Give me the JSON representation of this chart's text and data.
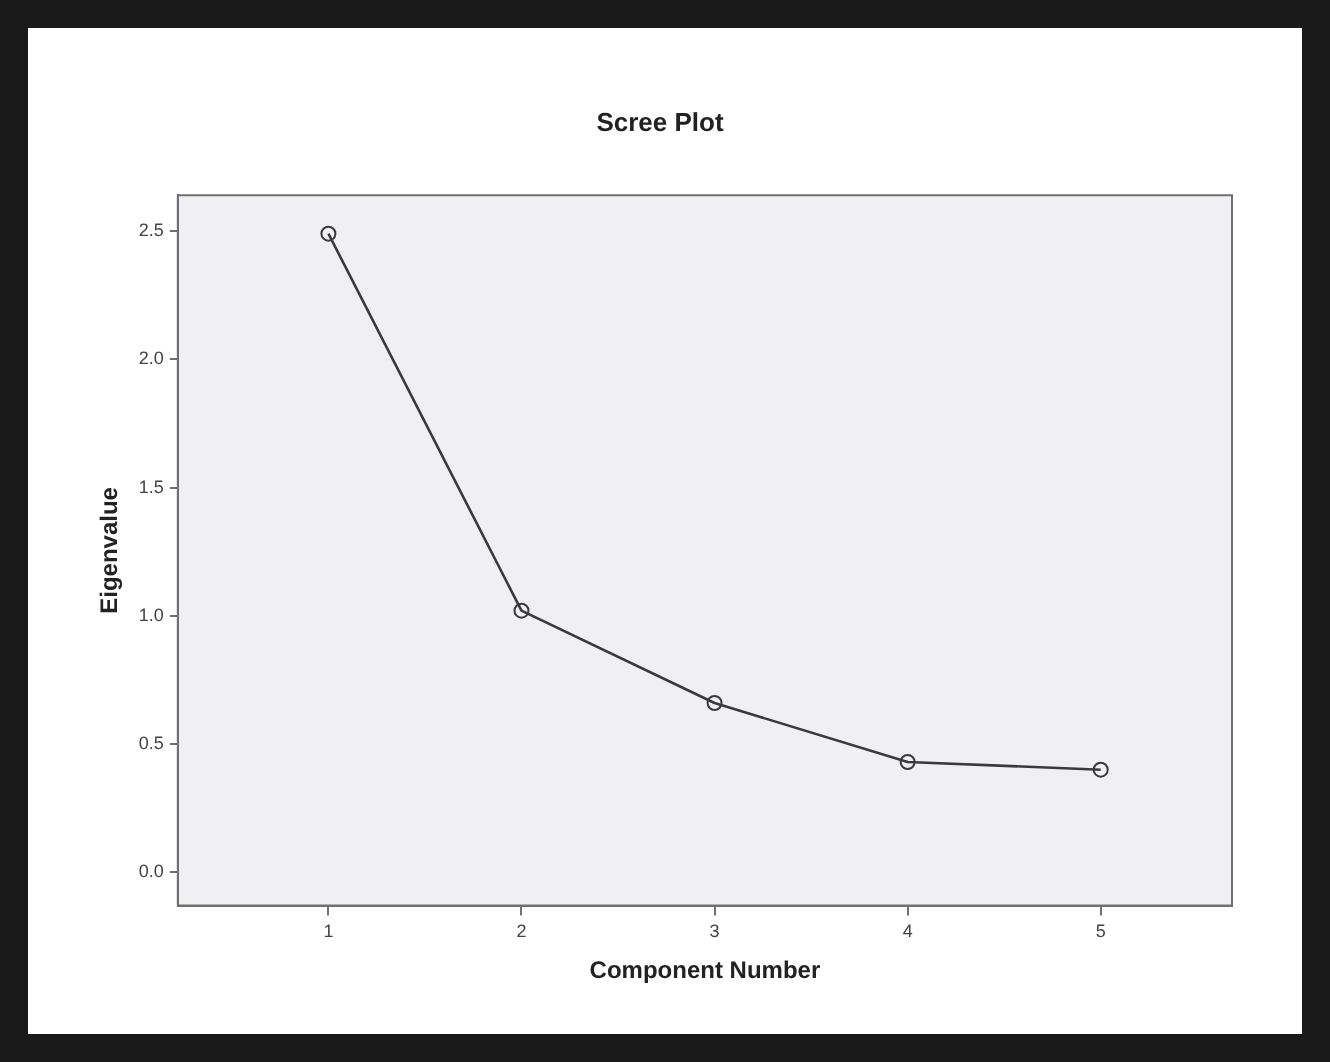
{
  "chart_data": {
    "type": "line",
    "title": "Scree Plot",
    "xlabel": "Component Number",
    "ylabel": "Eigenvalue",
    "x": [
      1,
      2,
      3,
      4,
      5
    ],
    "series": [
      {
        "color": "#3a3a3a",
        "values": [
          2.49,
          1.02,
          0.66,
          0.43,
          0.4
        ]
      }
    ],
    "xlim": [
      0.22,
      5.68
    ],
    "xticks": [
      1,
      2,
      3,
      4,
      5
    ],
    "ylim": [
      -0.13,
      2.64
    ],
    "yticks": [
      {
        "value": 0,
        "label": "0.0"
      },
      0.5,
      {
        "value": 1,
        "label": "1.0"
      },
      1.5,
      {
        "value": 2,
        "label": "2.0"
      },
      2.5
    ],
    "grid": false,
    "legend": false,
    "marker": "circle",
    "line_style": "solid"
  }
}
